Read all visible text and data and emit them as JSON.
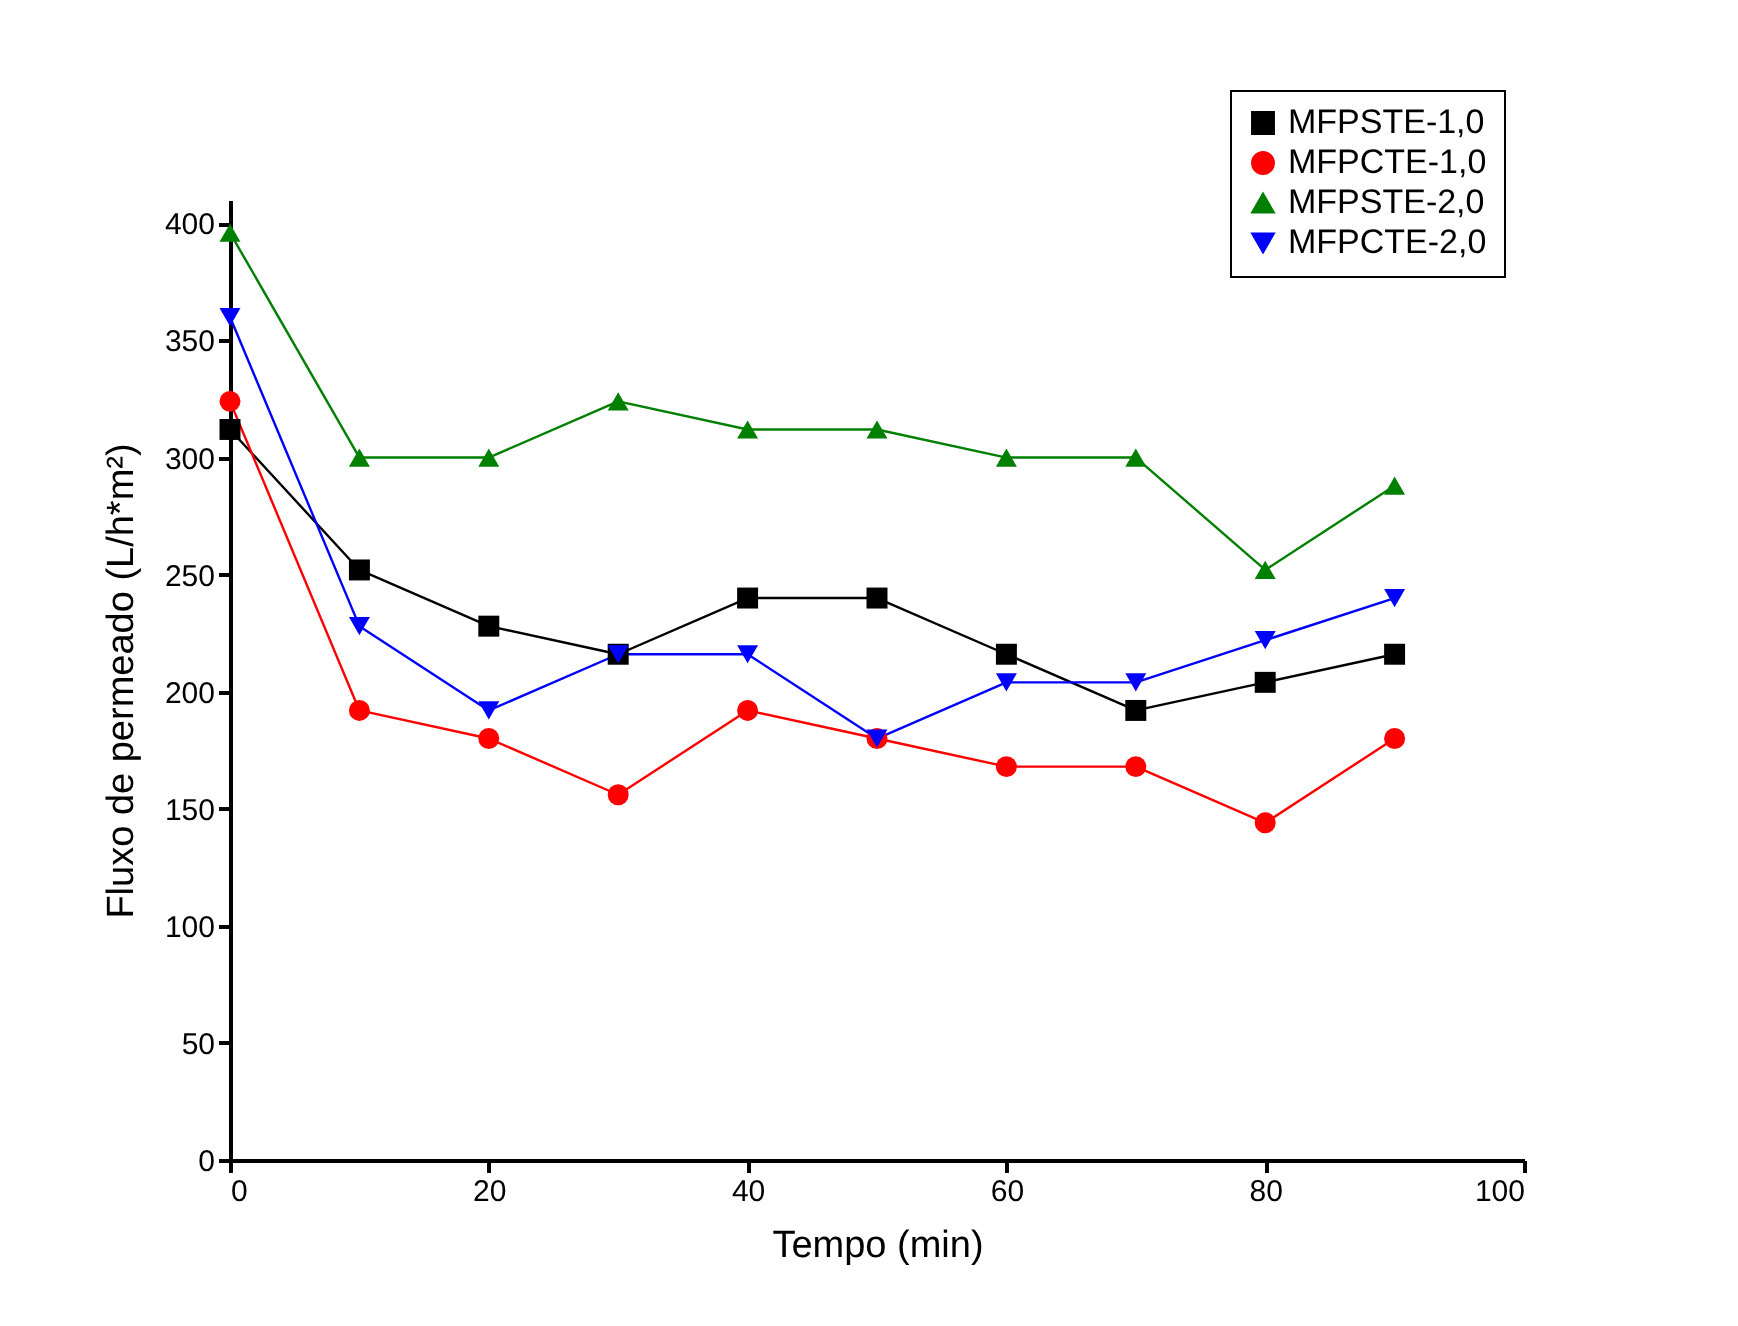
{
  "chart_data": {
    "type": "line",
    "xlabel": "Tempo (min)",
    "ylabel": "Fluxo de permeado (L/h*m²)",
    "x": [
      0,
      10,
      20,
      30,
      40,
      50,
      60,
      70,
      80,
      90
    ],
    "series": [
      {
        "name": "MFPSTE-1,0",
        "color": "#000000",
        "marker": "square",
        "values": [
          312,
          252,
          228,
          216,
          240,
          240,
          216,
          192,
          204,
          216
        ]
      },
      {
        "name": "MFPCTE-1,0",
        "color": "#ff0000",
        "marker": "circle",
        "values": [
          324,
          192,
          180,
          156,
          192,
          180,
          168,
          168,
          144,
          180
        ]
      },
      {
        "name": "MFPSTE-2,0",
        "color": "#008000",
        "marker": "triangle",
        "values": [
          396,
          300,
          300,
          324,
          312,
          312,
          300,
          300,
          252,
          288
        ]
      },
      {
        "name": "MFPCTE-2,0",
        "color": "#0000ff",
        "marker": "triangle-down",
        "values": [
          360,
          228,
          192,
          216,
          216,
          180,
          204,
          204,
          222,
          240
        ]
      }
    ],
    "xlim": [
      0,
      100
    ],
    "xticks": [
      0,
      20,
      40,
      60,
      80,
      100
    ],
    "ylim": [
      0,
      410
    ],
    "yticks": [
      0,
      50,
      100,
      150,
      200,
      250,
      300,
      350,
      400
    ],
    "grid": false,
    "legend": "top right",
    "line_style": "solid"
  }
}
